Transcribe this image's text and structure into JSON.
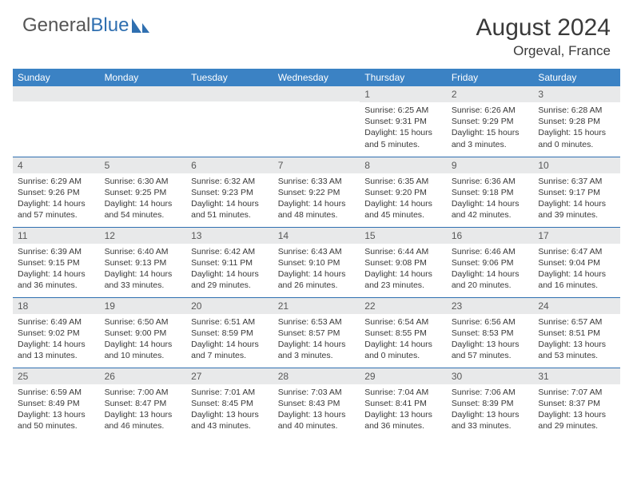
{
  "brand": {
    "part1": "General",
    "part2": "Blue"
  },
  "title": {
    "month": "August 2024",
    "location": "Orgeval, France"
  },
  "colors": {
    "header_bg": "#3b82c4",
    "header_text": "#ffffff",
    "daynum_bg": "#e8e9ea",
    "border": "#2f6fb0",
    "brand_blue": "#2f6fb0",
    "brand_gray": "#555555"
  },
  "weekdays": [
    "Sunday",
    "Monday",
    "Tuesday",
    "Wednesday",
    "Thursday",
    "Friday",
    "Saturday"
  ],
  "weeks": [
    [
      {
        "n": "",
        "sr": "",
        "ss": "",
        "dl": ""
      },
      {
        "n": "",
        "sr": "",
        "ss": "",
        "dl": ""
      },
      {
        "n": "",
        "sr": "",
        "ss": "",
        "dl": ""
      },
      {
        "n": "",
        "sr": "",
        "ss": "",
        "dl": ""
      },
      {
        "n": "1",
        "sr": "Sunrise: 6:25 AM",
        "ss": "Sunset: 9:31 PM",
        "dl": "Daylight: 15 hours and 5 minutes."
      },
      {
        "n": "2",
        "sr": "Sunrise: 6:26 AM",
        "ss": "Sunset: 9:29 PM",
        "dl": "Daylight: 15 hours and 3 minutes."
      },
      {
        "n": "3",
        "sr": "Sunrise: 6:28 AM",
        "ss": "Sunset: 9:28 PM",
        "dl": "Daylight: 15 hours and 0 minutes."
      }
    ],
    [
      {
        "n": "4",
        "sr": "Sunrise: 6:29 AM",
        "ss": "Sunset: 9:26 PM",
        "dl": "Daylight: 14 hours and 57 minutes."
      },
      {
        "n": "5",
        "sr": "Sunrise: 6:30 AM",
        "ss": "Sunset: 9:25 PM",
        "dl": "Daylight: 14 hours and 54 minutes."
      },
      {
        "n": "6",
        "sr": "Sunrise: 6:32 AM",
        "ss": "Sunset: 9:23 PM",
        "dl": "Daylight: 14 hours and 51 minutes."
      },
      {
        "n": "7",
        "sr": "Sunrise: 6:33 AM",
        "ss": "Sunset: 9:22 PM",
        "dl": "Daylight: 14 hours and 48 minutes."
      },
      {
        "n": "8",
        "sr": "Sunrise: 6:35 AM",
        "ss": "Sunset: 9:20 PM",
        "dl": "Daylight: 14 hours and 45 minutes."
      },
      {
        "n": "9",
        "sr": "Sunrise: 6:36 AM",
        "ss": "Sunset: 9:18 PM",
        "dl": "Daylight: 14 hours and 42 minutes."
      },
      {
        "n": "10",
        "sr": "Sunrise: 6:37 AM",
        "ss": "Sunset: 9:17 PM",
        "dl": "Daylight: 14 hours and 39 minutes."
      }
    ],
    [
      {
        "n": "11",
        "sr": "Sunrise: 6:39 AM",
        "ss": "Sunset: 9:15 PM",
        "dl": "Daylight: 14 hours and 36 minutes."
      },
      {
        "n": "12",
        "sr": "Sunrise: 6:40 AM",
        "ss": "Sunset: 9:13 PM",
        "dl": "Daylight: 14 hours and 33 minutes."
      },
      {
        "n": "13",
        "sr": "Sunrise: 6:42 AM",
        "ss": "Sunset: 9:11 PM",
        "dl": "Daylight: 14 hours and 29 minutes."
      },
      {
        "n": "14",
        "sr": "Sunrise: 6:43 AM",
        "ss": "Sunset: 9:10 PM",
        "dl": "Daylight: 14 hours and 26 minutes."
      },
      {
        "n": "15",
        "sr": "Sunrise: 6:44 AM",
        "ss": "Sunset: 9:08 PM",
        "dl": "Daylight: 14 hours and 23 minutes."
      },
      {
        "n": "16",
        "sr": "Sunrise: 6:46 AM",
        "ss": "Sunset: 9:06 PM",
        "dl": "Daylight: 14 hours and 20 minutes."
      },
      {
        "n": "17",
        "sr": "Sunrise: 6:47 AM",
        "ss": "Sunset: 9:04 PM",
        "dl": "Daylight: 14 hours and 16 minutes."
      }
    ],
    [
      {
        "n": "18",
        "sr": "Sunrise: 6:49 AM",
        "ss": "Sunset: 9:02 PM",
        "dl": "Daylight: 14 hours and 13 minutes."
      },
      {
        "n": "19",
        "sr": "Sunrise: 6:50 AM",
        "ss": "Sunset: 9:00 PM",
        "dl": "Daylight: 14 hours and 10 minutes."
      },
      {
        "n": "20",
        "sr": "Sunrise: 6:51 AM",
        "ss": "Sunset: 8:59 PM",
        "dl": "Daylight: 14 hours and 7 minutes."
      },
      {
        "n": "21",
        "sr": "Sunrise: 6:53 AM",
        "ss": "Sunset: 8:57 PM",
        "dl": "Daylight: 14 hours and 3 minutes."
      },
      {
        "n": "22",
        "sr": "Sunrise: 6:54 AM",
        "ss": "Sunset: 8:55 PM",
        "dl": "Daylight: 14 hours and 0 minutes."
      },
      {
        "n": "23",
        "sr": "Sunrise: 6:56 AM",
        "ss": "Sunset: 8:53 PM",
        "dl": "Daylight: 13 hours and 57 minutes."
      },
      {
        "n": "24",
        "sr": "Sunrise: 6:57 AM",
        "ss": "Sunset: 8:51 PM",
        "dl": "Daylight: 13 hours and 53 minutes."
      }
    ],
    [
      {
        "n": "25",
        "sr": "Sunrise: 6:59 AM",
        "ss": "Sunset: 8:49 PM",
        "dl": "Daylight: 13 hours and 50 minutes."
      },
      {
        "n": "26",
        "sr": "Sunrise: 7:00 AM",
        "ss": "Sunset: 8:47 PM",
        "dl": "Daylight: 13 hours and 46 minutes."
      },
      {
        "n": "27",
        "sr": "Sunrise: 7:01 AM",
        "ss": "Sunset: 8:45 PM",
        "dl": "Daylight: 13 hours and 43 minutes."
      },
      {
        "n": "28",
        "sr": "Sunrise: 7:03 AM",
        "ss": "Sunset: 8:43 PM",
        "dl": "Daylight: 13 hours and 40 minutes."
      },
      {
        "n": "29",
        "sr": "Sunrise: 7:04 AM",
        "ss": "Sunset: 8:41 PM",
        "dl": "Daylight: 13 hours and 36 minutes."
      },
      {
        "n": "30",
        "sr": "Sunrise: 7:06 AM",
        "ss": "Sunset: 8:39 PM",
        "dl": "Daylight: 13 hours and 33 minutes."
      },
      {
        "n": "31",
        "sr": "Sunrise: 7:07 AM",
        "ss": "Sunset: 8:37 PM",
        "dl": "Daylight: 13 hours and 29 minutes."
      }
    ]
  ]
}
